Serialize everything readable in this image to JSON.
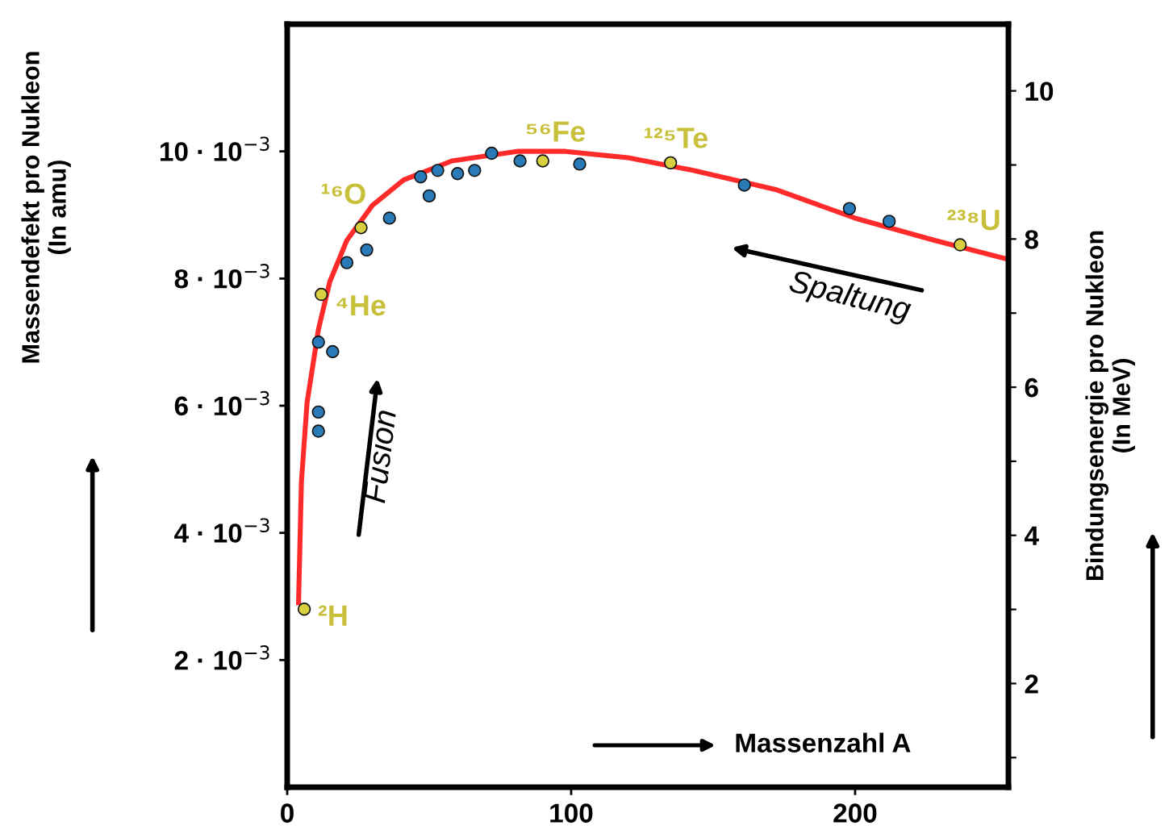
{
  "chart_data": {
    "type": "scatter",
    "xlabel": "Massenzahl A",
    "ylabel": "Massendefekt pro Nukleon\n(In amu)",
    "y2label": "Bindungsenergie pro Nukleon\n(In MeV)",
    "xlim": [
      0,
      254
    ],
    "xticks": [
      0,
      100,
      200
    ],
    "ylim": [
      0,
      0.012
    ],
    "yticks": [
      {
        "value": 0.002,
        "label": "2 · 10$^{−3}$"
      },
      {
        "value": 0.004,
        "label": "4 · 10$^{−3}$"
      },
      {
        "value": 0.006,
        "label": "6 · 10$^{−3}$"
      },
      {
        "value": 0.008,
        "label": "8 · 10$^{−3}$"
      },
      {
        "value": 0.01,
        "label": "10 · 10$^{−3}$"
      }
    ],
    "y2lim": [
      0.6,
      10.9
    ],
    "y2ticks": [
      {
        "value": 1,
        "label": null
      },
      2,
      {
        "value": 3,
        "label": null
      },
      4,
      {
        "value": 5,
        "label": null
      },
      6,
      {
        "value": 7,
        "label": null
      },
      8,
      {
        "value": 9,
        "label": null
      },
      10
    ],
    "grid": false,
    "legend": false,
    "marker": "circle",
    "series": [
      {
        "type": "line",
        "color": "#ff2a2a",
        "marker": "none",
        "line_style": "solid",
        "x": [
          4,
          5,
          7,
          11,
          15,
          21,
          30,
          41,
          58,
          81,
          98,
          120,
          143,
          172,
          200,
          228,
          254
        ],
        "values": [
          0.0029,
          0.0048,
          0.00605,
          0.0072,
          0.00795,
          0.0086,
          0.00915,
          0.00955,
          0.00985,
          0.01,
          0.01,
          0.0099,
          0.0097,
          0.0094,
          0.00895,
          0.0086,
          0.0083
        ]
      },
      {
        "type": "scatter",
        "x": [
          6,
          12,
          11,
          16,
          11,
          11,
          21,
          26,
          28,
          36,
          47,
          50,
          53,
          60,
          66,
          72,
          82,
          90,
          103,
          135,
          161,
          198,
          212,
          237
        ],
        "values": [
          0.0028,
          0.00775,
          0.007,
          0.00685,
          0.0059,
          0.0056,
          0.00825,
          0.0088,
          0.00845,
          0.00895,
          0.0096,
          0.0093,
          0.0097,
          0.00965,
          0.0097,
          0.00997,
          0.00985,
          0.00985,
          0.0098,
          0.00982,
          0.00947,
          0.0091,
          0.0089,
          0.00853
        ],
        "colors": [
          "#d8d040",
          "#d8d040",
          "#2a7ab8",
          "#2a7ab8",
          "#2a7ab8",
          "#2a7ab8",
          "#2a7ab8",
          "#d8d040",
          "#2a7ab8",
          "#2a7ab8",
          "#2a7ab8",
          "#2a7ab8",
          "#2a7ab8",
          "#2a7ab8",
          "#2a7ab8",
          "#2a7ab8",
          "#2a7ab8",
          "#d8d040",
          "#2a7ab8",
          "#d8d040",
          "#2a7ab8",
          "#2a7ab8",
          "#2a7ab8",
          "#d8d040"
        ]
      }
    ],
    "annotations": [
      {
        "text": "²H",
        "x": 6,
        "y": 0.0028
      },
      {
        "text": "⁴He",
        "x": 12,
        "y": 0.00775
      },
      {
        "text": "¹⁶O",
        "x": 26,
        "y": 0.0088
      },
      {
        "text": "⁵⁶Fe",
        "x": 90,
        "y": 0.00985
      },
      {
        "text": "¹²⁵Te",
        "x": 135,
        "y": 0.00982
      },
      {
        "text": "²³⁸U",
        "x": 237,
        "y": 0.00853
      },
      "Fusion",
      "Spaltung"
    ]
  }
}
